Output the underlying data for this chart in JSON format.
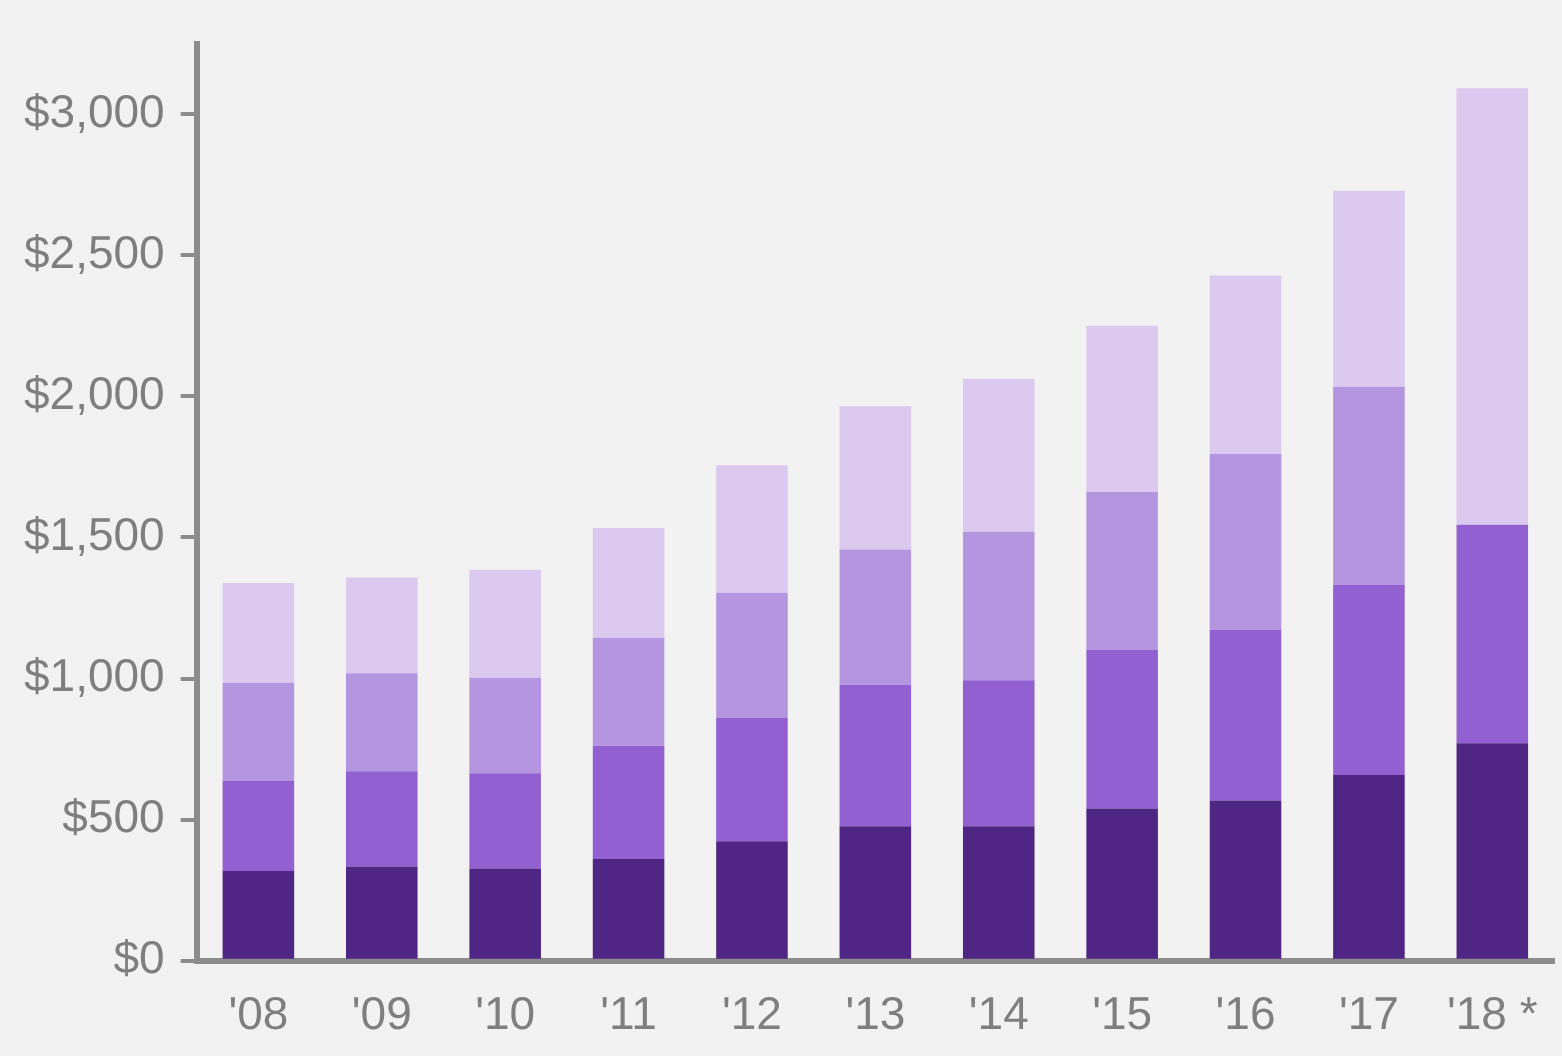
{
  "chart_data": {
    "type": "bar",
    "stacked": true,
    "categories": [
      "'08",
      "'09",
      "'10",
      "'11",
      "'12",
      "'13",
      "'14",
      "'15",
      "'16",
      "'17",
      "'18 *"
    ],
    "series": [
      {
        "color": "#4f2683",
        "values": [
          318,
          334,
          327,
          361,
          424,
          477,
          477,
          540,
          568,
          658,
          771
        ]
      },
      {
        "color": "#9260d0",
        "values": [
          319,
          338,
          338,
          401,
          436,
          501,
          517,
          561,
          604,
          674,
          774
        ]
      },
      {
        "color": "#b496e0",
        "values": [
          348,
          347,
          338,
          383,
          444,
          479,
          526,
          560,
          624,
          702,
          null
        ]
      },
      {
        "color": "#dbc9ef",
        "values": [
          354,
          339,
          383,
          389,
          452,
          508,
          542,
          589,
          632,
          695,
          1547
        ]
      }
    ],
    "ylim": [
      0,
      3250
    ],
    "yticks": [
      {
        "value": 0,
        "label": "$0"
      },
      {
        "value": 500,
        "label": "$500"
      },
      {
        "value": 1000,
        "label": "$1,000"
      },
      {
        "value": 1500,
        "label": "$1,500"
      },
      {
        "value": 2000,
        "label": "$2,000"
      },
      {
        "value": 2500,
        "label": "$2,500"
      },
      {
        "value": 3000,
        "label": "$3,000"
      }
    ],
    "grid": false,
    "legend": false
  }
}
